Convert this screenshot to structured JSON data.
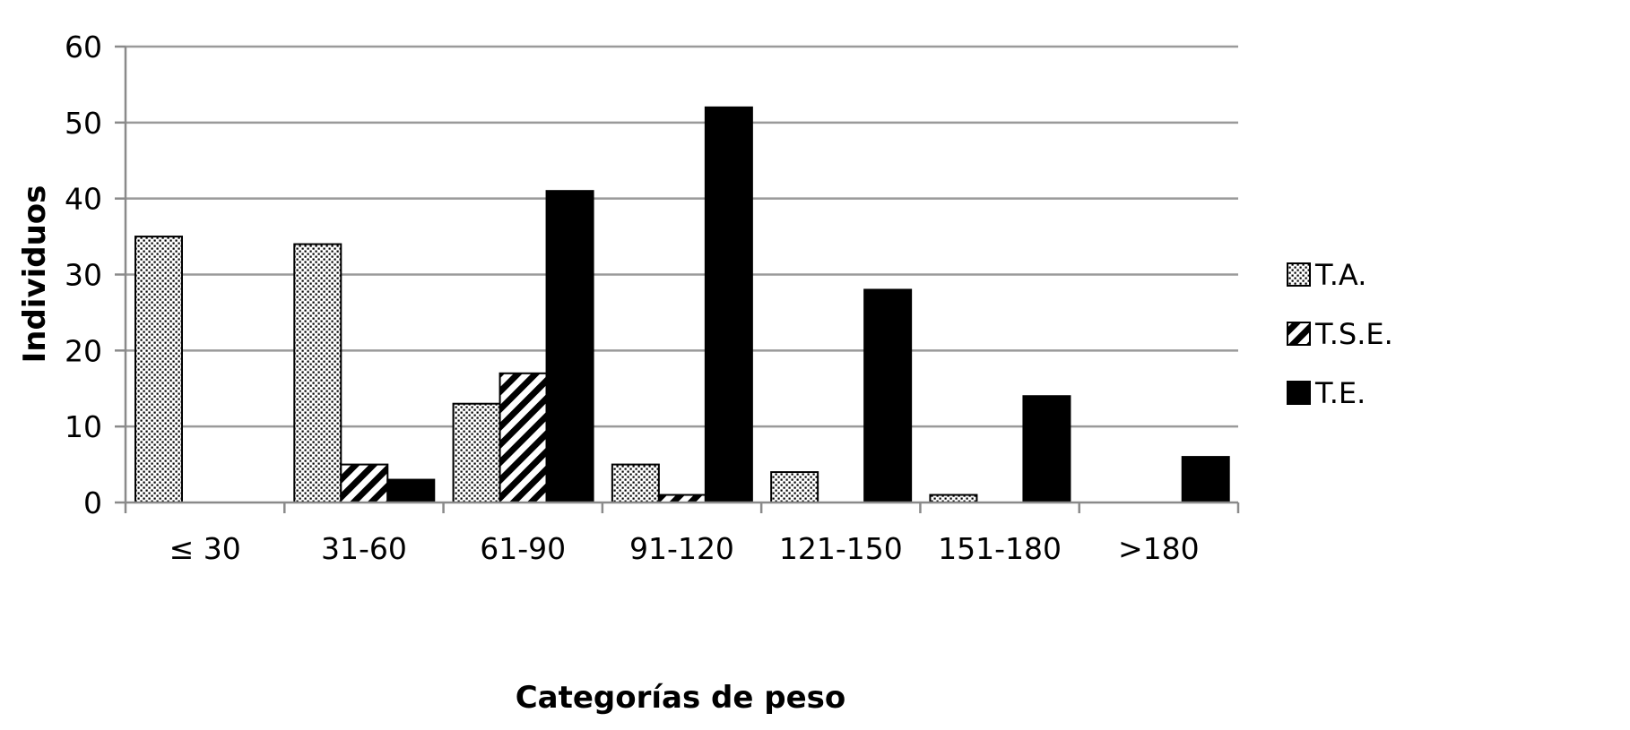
{
  "chart_data": {
    "type": "bar",
    "categories": [
      "≤ 30",
      "31-60",
      "61-90",
      "91-120",
      "121-150",
      "151-180",
      ">180"
    ],
    "series": [
      {
        "name": "T.A.",
        "values": [
          35,
          34,
          13,
          5,
          4,
          1,
          0
        ],
        "pattern": "dots"
      },
      {
        "name": "T.S.E.",
        "values": [
          0,
          5,
          17,
          1,
          0,
          0,
          0
        ],
        "pattern": "diagonal-hatch"
      },
      {
        "name": "T.E.",
        "values": [
          0,
          3,
          41,
          52,
          28,
          14,
          6
        ],
        "pattern": "solid"
      }
    ],
    "title": "",
    "xlabel": "Categorías de peso",
    "ylabel": "Individuos",
    "ylim": [
      0,
      60
    ],
    "yticks": [
      "0",
      "10",
      "20",
      "30",
      "40",
      "50",
      "60"
    ],
    "grid": true,
    "legend": "right",
    "colors": {
      "bar_fill": "#000000",
      "gridline": "#9a9a9a",
      "axis": "#8a8a8a",
      "background": "#ffffff"
    }
  }
}
